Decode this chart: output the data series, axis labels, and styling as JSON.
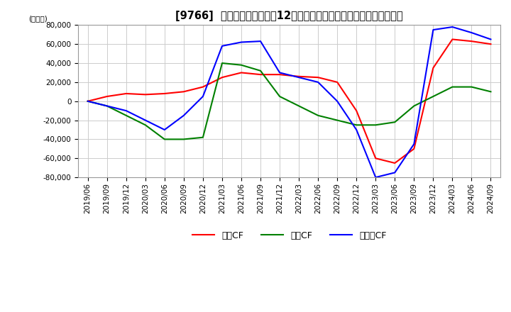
{
  "title": "[9766]  キャッシュフローの12か月移動合計の対前年同期増減額の推移",
  "ylabel": "(百万円)",
  "ylim": [
    -80000,
    80000
  ],
  "yticks": [
    -80000,
    -60000,
    -40000,
    -20000,
    0,
    20000,
    40000,
    60000,
    80000
  ],
  "line_colors": {
    "eigyo": "#ff0000",
    "toshi": "#008000",
    "free": "#0000ff"
  },
  "legend_labels": [
    "営業CF",
    "投資CF",
    "フリーCF"
  ],
  "dates": [
    "2019/06",
    "2019/09",
    "2019/12",
    "2020/03",
    "2020/06",
    "2020/09",
    "2020/12",
    "2021/03",
    "2021/06",
    "2021/09",
    "2021/12",
    "2022/03",
    "2022/06",
    "2022/09",
    "2022/12",
    "2023/03",
    "2023/06",
    "2023/09",
    "2023/12",
    "2024/03",
    "2024/06",
    "2024/09"
  ],
  "eigyo": [
    0,
    5000,
    8000,
    7000,
    8000,
    10000,
    15000,
    25000,
    30000,
    28000,
    28000,
    26000,
    25000,
    20000,
    -10000,
    -60000,
    -65000,
    -50000,
    35000,
    65000,
    63000,
    60000
  ],
  "toshi": [
    0,
    -5000,
    -15000,
    -25000,
    -40000,
    -40000,
    -38000,
    40000,
    38000,
    32000,
    5000,
    -5000,
    -15000,
    -20000,
    -25000,
    -25000,
    -22000,
    -5000,
    5000,
    15000,
    15000,
    10000
  ],
  "free": [
    0,
    -5000,
    -10000,
    -20000,
    -30000,
    -15000,
    5000,
    58000,
    62000,
    63000,
    30000,
    25000,
    20000,
    0,
    -30000,
    -80000,
    -75000,
    -45000,
    75000,
    78000,
    72000,
    65000
  ],
  "bg_color": "#ffffff",
  "grid_color": "#cccccc",
  "title_fontsize": 10.5,
  "tick_fontsize": 7.5,
  "legend_fontsize": 9
}
